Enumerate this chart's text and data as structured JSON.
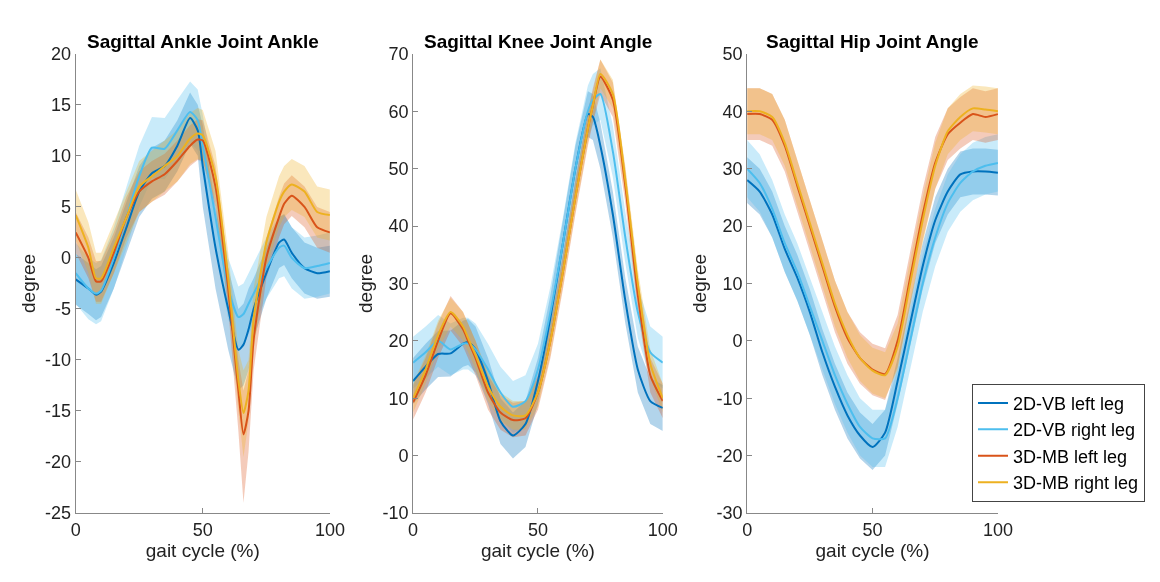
{
  "chart_data": [
    {
      "type": "line",
      "title": "Sagittal Ankle Joint Ankle",
      "xlabel": "gait cycle (%)",
      "ylabel": "degree",
      "xlim": [
        0,
        100
      ],
      "xticks": [
        0,
        50,
        100
      ],
      "ylim": [
        -25,
        20
      ],
      "yticks": [
        -25,
        -20,
        -15,
        -10,
        -5,
        0,
        5,
        10,
        15,
        20
      ],
      "legend": false,
      "x": [
        0,
        5,
        8,
        10,
        15,
        20,
        25,
        30,
        35,
        40,
        45,
        48,
        50,
        55,
        60,
        64,
        66,
        68,
        70,
        75,
        80,
        82,
        85,
        90,
        95,
        100
      ],
      "series": [
        {
          "color": "#0072bd",
          "values": [
            -2.1,
            -3,
            -3.6,
            -3.3,
            -0.5,
            3,
            6.5,
            8.3,
            9,
            11,
            13.7,
            12.5,
            9,
            1,
            -5,
            -9,
            -8.5,
            -7,
            -5,
            -1.5,
            1.5,
            1.8,
            0.5,
            -1,
            -1.5,
            -1.3
          ],
          "lower": [
            -4.6,
            -5.5,
            -6.1,
            -5.8,
            -3,
            0.5,
            4,
            5.8,
            6.5,
            8.5,
            11.2,
            10,
            5,
            -3,
            -9,
            -13,
            -12.5,
            -11,
            -8,
            -4,
            -1,
            -0.7,
            -2,
            -3.5,
            -4,
            -3.8
          ],
          "upper": [
            0.4,
            -0.5,
            -1.1,
            -0.8,
            2,
            5.5,
            9,
            10.8,
            11.5,
            13.5,
            16.2,
            15,
            13,
            5,
            -1,
            -5,
            -4.5,
            -3,
            -2,
            1,
            4,
            4.3,
            3,
            1.5,
            1,
            1.2
          ]
        },
        {
          "color": "#4dbeee",
          "values": [
            -1.5,
            -3,
            -3.5,
            -3.2,
            0,
            4,
            8,
            10.8,
            10.7,
            12.5,
            14.3,
            13.5,
            11,
            4,
            -3,
            -5.8,
            -5.5,
            -4.5,
            -3.5,
            -1,
            1,
            1.2,
            0,
            -1,
            -0.8,
            -0.5
          ],
          "lower": [
            -4.5,
            -6,
            -6.5,
            -6.2,
            -3,
            1,
            5,
            7.8,
            7.7,
            9.5,
            11.3,
            10.5,
            8,
            1,
            -6,
            -8.8,
            -8.5,
            -7.5,
            -6.5,
            -4,
            -2,
            -1.8,
            -3,
            -4,
            -3.8,
            -3.5
          ],
          "upper": [
            1.5,
            0,
            -0.5,
            -0.2,
            3,
            7,
            11,
            13.8,
            13.7,
            15.5,
            17.3,
            16.5,
            14,
            7,
            0,
            -2.8,
            -2.5,
            -1.5,
            -0.5,
            2,
            4,
            4.2,
            3,
            2,
            2.2,
            2.5
          ]
        },
        {
          "color": "#d95319",
          "values": [
            2.5,
            0,
            -2.3,
            -2.3,
            0.5,
            4,
            6.5,
            7.5,
            8.2,
            9.5,
            11,
            11.6,
            11.5,
            7,
            -3,
            -13,
            -17.3,
            -15,
            -8,
            0,
            4,
            5.3,
            6.1,
            5,
            3,
            2.5
          ],
          "lower": [
            0.5,
            -2,
            -4.3,
            -4.3,
            -1.5,
            2,
            4.5,
            5.5,
            6.2,
            7.5,
            9,
            9.6,
            9.5,
            5,
            -5,
            -17,
            -24,
            -19,
            -11,
            -2,
            2,
            3.3,
            4.1,
            3,
            1,
            0.5
          ],
          "upper": [
            4.5,
            2,
            -0.3,
            -0.3,
            2.5,
            6,
            8.5,
            9.5,
            10.2,
            11.5,
            13,
            13.6,
            13.5,
            9,
            -1,
            -10,
            -13,
            -11,
            -5,
            2,
            6,
            7.3,
            8.1,
            7,
            5,
            4.5
          ]
        },
        {
          "color": "#edb120",
          "values": [
            4.2,
            1,
            -2,
            -2,
            1,
            4,
            7,
            8,
            9,
            10,
            11.7,
            12.2,
            12,
            8,
            -2,
            -12,
            -15.2,
            -13,
            -6,
            1.5,
            5.5,
            6.5,
            7.2,
            6.5,
            4.5,
            4.2
          ],
          "lower": [
            1.7,
            -1.5,
            -4.5,
            -4.5,
            -1.5,
            1.5,
            4.5,
            5.5,
            6.5,
            7.5,
            9.2,
            9.7,
            9.5,
            5.5,
            -4.5,
            -15,
            -19.5,
            -16,
            -9,
            -1,
            3,
            4,
            4.7,
            4,
            2,
            1.7
          ],
          "upper": [
            6.7,
            3.5,
            0.5,
            0.5,
            3.5,
            6.5,
            9.5,
            10.5,
            11.5,
            12.5,
            14.2,
            14.7,
            14.5,
            10.5,
            0.5,
            -9,
            -11,
            -10,
            -3,
            4,
            8,
            9,
            9.7,
            9,
            7,
            6.7
          ]
        }
      ]
    },
    {
      "type": "line",
      "title": "Sagittal Knee Joint Angle",
      "xlabel": "gait cycle (%)",
      "ylabel": "degree",
      "xlim": [
        0,
        100
      ],
      "xticks": [
        0,
        50,
        100
      ],
      "ylim": [
        -10,
        70
      ],
      "yticks": [
        -10,
        0,
        10,
        20,
        30,
        40,
        50,
        60,
        70
      ],
      "legend": false,
      "x": [
        0,
        5,
        10,
        15,
        20,
        22,
        25,
        30,
        35,
        40,
        45,
        50,
        55,
        60,
        65,
        70,
        72,
        75,
        80,
        85,
        90,
        95,
        100
      ],
      "series": [
        {
          "color": "#0072bd",
          "values": [
            13,
            15.5,
            17.7,
            17.8,
            19.5,
            19.8,
            18.5,
            13,
            6,
            3.5,
            5.5,
            13,
            24,
            37,
            50,
            59.5,
            59,
            54,
            42,
            27,
            15,
            9.5,
            8.3
          ],
          "lower": [
            9,
            11.5,
            13.7,
            13.8,
            15.5,
            15.8,
            14.5,
            9,
            2,
            -0.5,
            1.5,
            9,
            20,
            33,
            46,
            55.5,
            55,
            50,
            38,
            23,
            11,
            5.5,
            4.3
          ],
          "upper": [
            17,
            19.5,
            21.7,
            21.8,
            23.5,
            23.8,
            22.5,
            17,
            10,
            7.5,
            9.5,
            17,
            28,
            41,
            54,
            63.5,
            63,
            58,
            46,
            31,
            19,
            13.5,
            12.3
          ]
        },
        {
          "color": "#4dbeee",
          "values": [
            16.2,
            18,
            20,
            18.5,
            19.5,
            19.5,
            18.5,
            15,
            11,
            8.5,
            9.5,
            15,
            25,
            37,
            50,
            60,
            62,
            63,
            53,
            38,
            25,
            18,
            16.2
          ],
          "lower": [
            11.7,
            13.5,
            15.5,
            14,
            15,
            15,
            14,
            10.5,
            6.5,
            4,
            5,
            10.5,
            20.5,
            32.5,
            45.5,
            55.5,
            57.5,
            58.5,
            48.5,
            33.5,
            20.5,
            13.5,
            11.7
          ],
          "upper": [
            20.7,
            22.5,
            24.5,
            23,
            24,
            24,
            23,
            19.5,
            15.5,
            13,
            14,
            19.5,
            29.5,
            41.5,
            54.5,
            64.5,
            66.5,
            67.5,
            57.5,
            42.5,
            29.5,
            22.5,
            20.7
          ]
        },
        {
          "color": "#d95319",
          "values": [
            9.3,
            14,
            20,
            24.8,
            22,
            20,
            17,
            11,
            7.5,
            6.2,
            6.5,
            11,
            20,
            32,
            45,
            57,
            61,
            66,
            62,
            47,
            28,
            14,
            9.5
          ],
          "lower": [
            6.3,
            11,
            17,
            21.8,
            19,
            17,
            14,
            8,
            4.5,
            3.2,
            3.5,
            8,
            17,
            29,
            42,
            54,
            58,
            63,
            59,
            44,
            25,
            11,
            6.5
          ],
          "upper": [
            12.3,
            17,
            23,
            27.8,
            25,
            23,
            20,
            14,
            10.5,
            9.2,
            9.5,
            14,
            23,
            35,
            48,
            60,
            64,
            69,
            65,
            50,
            31,
            17,
            12.5
          ]
        },
        {
          "color": "#edb120",
          "values": [
            10,
            15,
            21,
            25,
            22.5,
            20.5,
            17.5,
            12,
            8.5,
            7,
            7,
            11,
            20,
            32,
            45,
            57,
            61,
            66.5,
            63,
            48,
            30,
            16,
            10
          ],
          "lower": [
            7.5,
            12.5,
            18.5,
            22.5,
            20,
            18,
            15,
            9.5,
            6,
            4.5,
            4.5,
            8.5,
            17.5,
            29.5,
            42.5,
            54.5,
            58.5,
            64,
            60.5,
            45.5,
            27.5,
            13.5,
            7.5
          ],
          "upper": [
            12.5,
            17.5,
            23.5,
            27.5,
            25,
            23,
            20,
            14.5,
            11,
            9.5,
            9.5,
            13.5,
            22.5,
            34.5,
            47.5,
            59.5,
            63.5,
            69,
            65.5,
            50.5,
            32.5,
            18.5,
            12.5
          ]
        }
      ]
    },
    {
      "type": "line",
      "title": "Sagittal Hip Joint Angle",
      "xlabel": "gait cycle (%)",
      "ylabel": "degree",
      "xlim": [
        0,
        100
      ],
      "xticks": [
        0,
        50,
        100
      ],
      "ylim": [
        -30,
        50
      ],
      "yticks": [
        -30,
        -20,
        -10,
        0,
        10,
        20,
        30,
        40,
        50
      ],
      "legend": "bottom right",
      "x": [
        0,
        5,
        10,
        15,
        20,
        25,
        30,
        35,
        40,
        45,
        50,
        55,
        60,
        65,
        70,
        75,
        80,
        85,
        90,
        95,
        100
      ],
      "series": [
        {
          "name": "2D-VB left leg",
          "color": "#0072bd",
          "values": [
            28,
            26,
            22,
            16,
            11,
            5,
            -2,
            -8,
            -13,
            -16.5,
            -18.5,
            -16,
            -7,
            3,
            13,
            21,
            26,
            29,
            29.5,
            29.5,
            29.3
          ],
          "lower": [
            24,
            22,
            18,
            12,
            7,
            1,
            -6,
            -12,
            -17,
            -20.5,
            -22.5,
            -20,
            -11,
            -1,
            9,
            17,
            22,
            25,
            25.5,
            25.5,
            25.3
          ],
          "upper": [
            32,
            30,
            26,
            20,
            15,
            9,
            2,
            -4,
            -9,
            -12.5,
            -14.5,
            -12,
            -3,
            7,
            17,
            25,
            30,
            33,
            33.5,
            33.5,
            33.3
          ]
        },
        {
          "name": "2D-VB right leg",
          "color": "#4dbeee",
          "values": [
            30,
            27.5,
            23,
            17,
            12,
            6,
            0,
            -6,
            -11,
            -15,
            -17,
            -17,
            -10,
            0,
            10,
            18,
            24,
            27.5,
            29.5,
            30.5,
            31
          ],
          "lower": [
            25,
            22.5,
            18,
            12,
            7,
            1,
            -5,
            -11,
            -16,
            -20,
            -22,
            -22,
            -15,
            -5,
            5,
            13,
            19,
            22.5,
            24.5,
            25.5,
            26
          ],
          "upper": [
            35,
            32.5,
            28,
            22,
            17,
            11,
            5,
            -1,
            -6,
            -10,
            -12,
            -12,
            -5,
            5,
            15,
            23,
            29,
            32.5,
            34.5,
            35.5,
            36
          ]
        },
        {
          "name": "3D-MB left leg",
          "color": "#d95319",
          "values": [
            39.5,
            39.5,
            38.5,
            34,
            27,
            20,
            13,
            6,
            0.5,
            -3,
            -5,
            -5.8,
            0,
            11,
            22,
            31,
            36,
            38,
            39.5,
            39,
            39.5
          ],
          "lower": [
            35,
            35,
            34,
            29.5,
            22.5,
            15.5,
            8.5,
            1.5,
            -4,
            -7.5,
            -9.5,
            -10.3,
            -4.5,
            6.5,
            17.5,
            26.5,
            31.5,
            33.5,
            35,
            34.5,
            35
          ],
          "upper": [
            44,
            44,
            43,
            38.5,
            31.5,
            24.5,
            17.5,
            10.5,
            5,
            1.5,
            -0.5,
            -1.3,
            4.5,
            15.5,
            26.5,
            35.5,
            40.5,
            42.5,
            44,
            43.5,
            44
          ]
        },
        {
          "name": "3D-MB right leg",
          "color": "#edb120",
          "values": [
            40,
            40,
            39,
            34.5,
            27.5,
            20.5,
            13.5,
            6.5,
            1,
            -3,
            -5.2,
            -6,
            -1,
            10,
            21,
            30.5,
            36.5,
            39,
            40.5,
            40.3,
            40
          ],
          "lower": [
            36,
            36,
            35,
            30.5,
            23.5,
            16.5,
            9.5,
            2.5,
            -3,
            -7,
            -9.2,
            -10,
            -5,
            6,
            17,
            26.5,
            32.5,
            35,
            36.5,
            36.3,
            36
          ],
          "upper": [
            44,
            44,
            43,
            38.5,
            31.5,
            24.5,
            17.5,
            10.5,
            5,
            1,
            -1.2,
            -2,
            3,
            14,
            25,
            34.5,
            40.5,
            43,
            44.5,
            44.3,
            44
          ]
        }
      ]
    }
  ]
}
